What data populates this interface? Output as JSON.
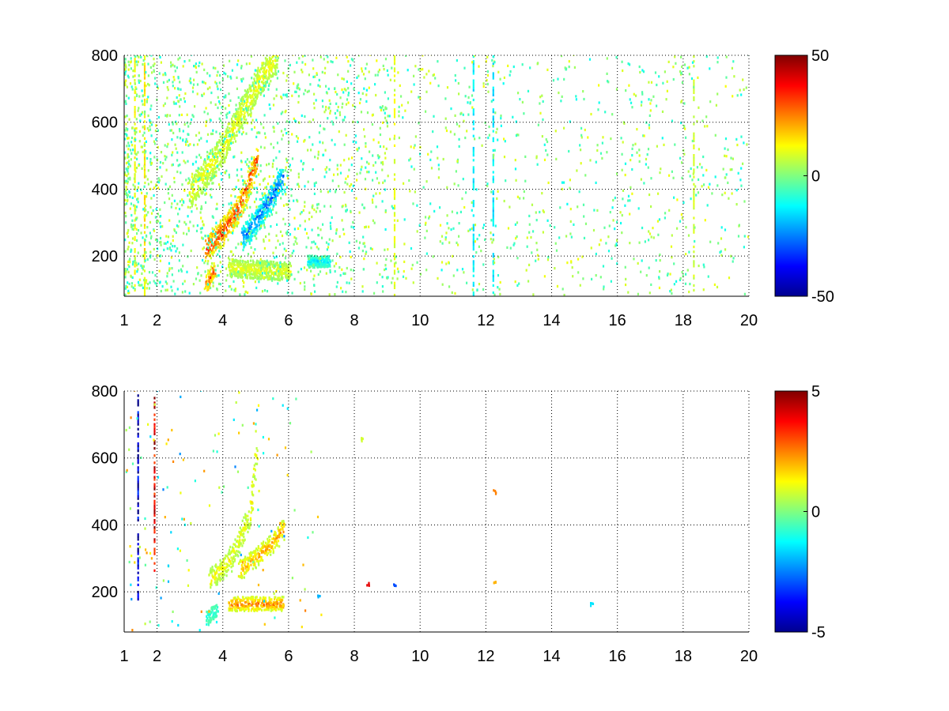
{
  "chart_data": [
    {
      "type": "heatmap",
      "title": "",
      "xlabel": "",
      "ylabel": "",
      "xlim": [
        1,
        20
      ],
      "ylim": [
        80,
        800
      ],
      "x_ticks": [
        1,
        2,
        4,
        6,
        8,
        10,
        12,
        14,
        16,
        18,
        20
      ],
      "x_tick_labels": [
        "1",
        "2",
        "4",
        "6",
        "8",
        "10",
        "12",
        "14",
        "16",
        "18",
        "20"
      ],
      "y_ticks": [
        200,
        400,
        600,
        800
      ],
      "y_tick_labels": [
        "200",
        "400",
        "600",
        "800"
      ],
      "grid": true,
      "colormap": "jet",
      "colorbar": {
        "placement": "right",
        "min": -50,
        "max": 50,
        "ticks": [
          50,
          0,
          -50
        ],
        "tick_labels": [
          "50",
          "0",
          "-50"
        ]
      },
      "features": [
        {
          "kind": "band",
          "x": [
            3.5,
            4.0,
            4.5,
            5.0
          ],
          "y": [
            220,
            270,
            340,
            480
          ],
          "value": 38,
          "width": 0.22
        },
        {
          "kind": "band",
          "x": [
            3.5,
            3.7
          ],
          "y": [
            115,
            150
          ],
          "value": 34,
          "width": 0.14
        },
        {
          "kind": "band",
          "x": [
            4.6,
            5.0,
            5.4,
            5.8
          ],
          "y": [
            250,
            300,
            360,
            430
          ],
          "value": -32,
          "width": 0.2
        },
        {
          "kind": "band",
          "x": [
            3.0,
            4.0,
            5.0,
            5.6
          ],
          "y": [
            380,
            520,
            700,
            790
          ],
          "value": 14,
          "width": 0.25
        },
        {
          "kind": "band",
          "x": [
            4.2,
            6.0
          ],
          "y": [
            160,
            150
          ],
          "value": 12,
          "width": 0.15
        },
        {
          "kind": "band",
          "x": [
            6.6,
            7.2
          ],
          "y": [
            180,
            180
          ],
          "value": -18,
          "width": 0.1
        },
        {
          "kind": "column",
          "x": 11.6,
          "y": [
            80,
            800
          ],
          "value": -14
        },
        {
          "kind": "column",
          "x": 12.2,
          "y": [
            80,
            800
          ],
          "value": -15
        },
        {
          "kind": "column",
          "x": 9.2,
          "y": [
            80,
            800
          ],
          "value": 10
        },
        {
          "kind": "column",
          "x": 18.3,
          "y": [
            80,
            800
          ],
          "value": 8
        },
        {
          "kind": "column",
          "x": 1.3,
          "y": [
            80,
            800
          ],
          "value": 12
        },
        {
          "kind": "column",
          "x": 1.6,
          "y": [
            80,
            800
          ],
          "value": 14
        }
      ]
    },
    {
      "type": "heatmap",
      "title": "",
      "xlabel": "",
      "ylabel": "",
      "xlim": [
        1,
        20
      ],
      "ylim": [
        80,
        800
      ],
      "x_ticks": [
        1,
        2,
        4,
        6,
        8,
        10,
        12,
        14,
        16,
        18,
        20
      ],
      "x_tick_labels": [
        "1",
        "2",
        "4",
        "6",
        "8",
        "10",
        "12",
        "14",
        "16",
        "18",
        "20"
      ],
      "y_ticks": [
        200,
        400,
        600,
        800
      ],
      "y_tick_labels": [
        "200",
        "400",
        "600",
        "800"
      ],
      "grid": true,
      "colormap": "jet",
      "colorbar": {
        "placement": "right",
        "min": -5,
        "max": 5,
        "ticks": [
          5,
          0,
          -5
        ],
        "tick_labels": [
          "5",
          "0",
          "-5"
        ]
      },
      "features": [
        {
          "kind": "band",
          "x": [
            3.6,
            4.2,
            4.8,
            5.0
          ],
          "y": [
            230,
            290,
            420,
            600
          ],
          "value": 1.5,
          "width": 0.18
        },
        {
          "kind": "band",
          "x": [
            4.5,
            5.0,
            5.5,
            5.8
          ],
          "y": [
            260,
            300,
            340,
            380
          ],
          "value": 2.4,
          "width": 0.16
        },
        {
          "kind": "band",
          "x": [
            4.2,
            5.8
          ],
          "y": [
            160,
            160
          ],
          "value": 3.0,
          "width": 0.12
        },
        {
          "kind": "band",
          "x": [
            3.5,
            3.8
          ],
          "y": [
            120,
            140
          ],
          "value": -1.2,
          "width": 0.12
        },
        {
          "kind": "spot",
          "x": 9.2,
          "y": 220,
          "value": -3.0
        },
        {
          "kind": "spot",
          "x": 12.25,
          "y": 495,
          "value": 2.5
        },
        {
          "kind": "spot",
          "x": 12.25,
          "y": 225,
          "value": 2.0
        },
        {
          "kind": "spot",
          "x": 15.2,
          "y": 160,
          "value": -1.5
        },
        {
          "kind": "spot",
          "x": 8.2,
          "y": 650,
          "value": 0.8
        },
        {
          "kind": "spot",
          "x": 6.9,
          "y": 180,
          "value": -2.0
        },
        {
          "kind": "spot",
          "x": 8.4,
          "y": 220,
          "value": 4.0
        },
        {
          "kind": "column",
          "x": 1.4,
          "y": [
            160,
            790
          ],
          "value": -4.5
        },
        {
          "kind": "column",
          "x": 1.9,
          "y": [
            260,
            790
          ],
          "value": 4.2
        }
      ]
    }
  ]
}
